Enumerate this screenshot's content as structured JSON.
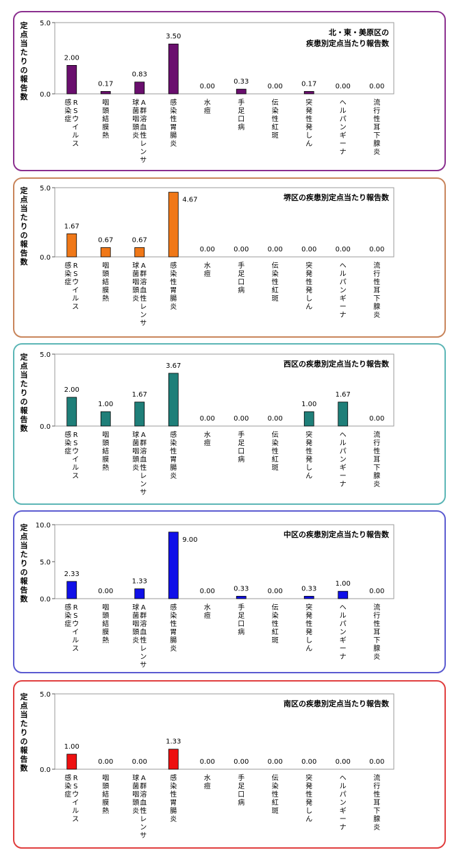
{
  "y_axis_label": "定点当たりの報告数",
  "categories": [
    [
      "RSウイルス",
      "感染症"
    ],
    [
      "咽頭結膜熱"
    ],
    [
      "A群溶血性レンサ",
      "球菌咽頭炎"
    ],
    [
      "感染性胃腸炎"
    ],
    [
      "水痘"
    ],
    [
      "手足口病"
    ],
    [
      "伝染性紅斑"
    ],
    [
      "突発性発しん"
    ],
    [
      "ヘルパンギーナ"
    ],
    [
      "流行性耳下腺炎"
    ]
  ],
  "chart_data": [
    {
      "type": "bar",
      "title": [
        "北・東・美原区の",
        "疾患別定点当たり報告数"
      ],
      "ylabel": "定点当たりの報告数",
      "ylim": [
        0,
        5
      ],
      "yticks": [
        0,
        5
      ],
      "ytick_labels": [
        "0.0",
        "5.0"
      ],
      "values": [
        2.0,
        0.17,
        0.83,
        3.5,
        0.0,
        0.33,
        0.0,
        0.17,
        0.0,
        0.0
      ],
      "value_labels": [
        "2.00",
        "0.17",
        "0.83",
        "3.50",
        "0.00",
        "0.33",
        "0.00",
        "0.17",
        "0.00",
        "0.00"
      ],
      "bar_color": "#6a0f6e",
      "frame_color": "#8a2e8e"
    },
    {
      "type": "bar",
      "title": [
        "堺区の疾患別定点当たり報告数"
      ],
      "ylabel": "定点当たりの報告数",
      "ylim": [
        0,
        5
      ],
      "yticks": [
        0,
        5
      ],
      "ytick_labels": [
        "0.0",
        "5.0"
      ],
      "values": [
        1.67,
        0.67,
        0.67,
        4.67,
        0.0,
        0.0,
        0.0,
        0.0,
        0.0,
        0.0
      ],
      "value_labels": [
        "1.67",
        "0.67",
        "0.67",
        "4.67",
        "0.00",
        "0.00",
        "0.00",
        "0.00",
        "0.00",
        "0.00"
      ],
      "bar_color": "#f07818",
      "frame_color": "#c8845a"
    },
    {
      "type": "bar",
      "title": [
        "西区の疾患別定点当たり報告数"
      ],
      "ylabel": "定点当たりの報告数",
      "ylim": [
        0,
        5
      ],
      "yticks": [
        0,
        5
      ],
      "ytick_labels": [
        "0.0",
        "5.0"
      ],
      "values": [
        2.0,
        1.0,
        1.67,
        3.67,
        0.0,
        0.0,
        0.0,
        1.0,
        1.67,
        0.0
      ],
      "value_labels": [
        "2.00",
        "1.00",
        "1.67",
        "3.67",
        "0.00",
        "0.00",
        "0.00",
        "1.00",
        "1.67",
        "0.00"
      ],
      "bar_color": "#1f7f79",
      "frame_color": "#5ab5b5"
    },
    {
      "type": "bar",
      "title": [
        "中区の疾患別定点当たり報告数"
      ],
      "ylabel": "定点当たりの報告数",
      "ylim": [
        0,
        10
      ],
      "yticks": [
        0,
        5,
        10
      ],
      "ytick_labels": [
        "0.0",
        "5.0",
        "10.0"
      ],
      "values": [
        2.33,
        0.0,
        1.33,
        9.0,
        0.0,
        0.33,
        0.0,
        0.33,
        1.0,
        0.0
      ],
      "value_labels": [
        "2.33",
        "0.00",
        "1.33",
        "9.00",
        "0.00",
        "0.33",
        "0.00",
        "0.33",
        "1.00",
        "0.00"
      ],
      "bar_color": "#1010e8",
      "frame_color": "#5a5ad0"
    },
    {
      "type": "bar",
      "title": [
        "南区の疾患別定点当たり報告数"
      ],
      "ylabel": "定点当たりの報告数",
      "ylim": [
        0,
        5
      ],
      "yticks": [
        0,
        5
      ],
      "ytick_labels": [
        "0.0",
        "5.0"
      ],
      "values": [
        1.0,
        0.0,
        0.0,
        1.33,
        0.0,
        0.0,
        0.0,
        0.0,
        0.0,
        0.0
      ],
      "value_labels": [
        "1.00",
        "0.00",
        "0.00",
        "1.33",
        "0.00",
        "0.00",
        "0.00",
        "0.00",
        "0.00",
        "0.00"
      ],
      "bar_color": "#ee1010",
      "frame_color": "#e03c3c"
    }
  ]
}
